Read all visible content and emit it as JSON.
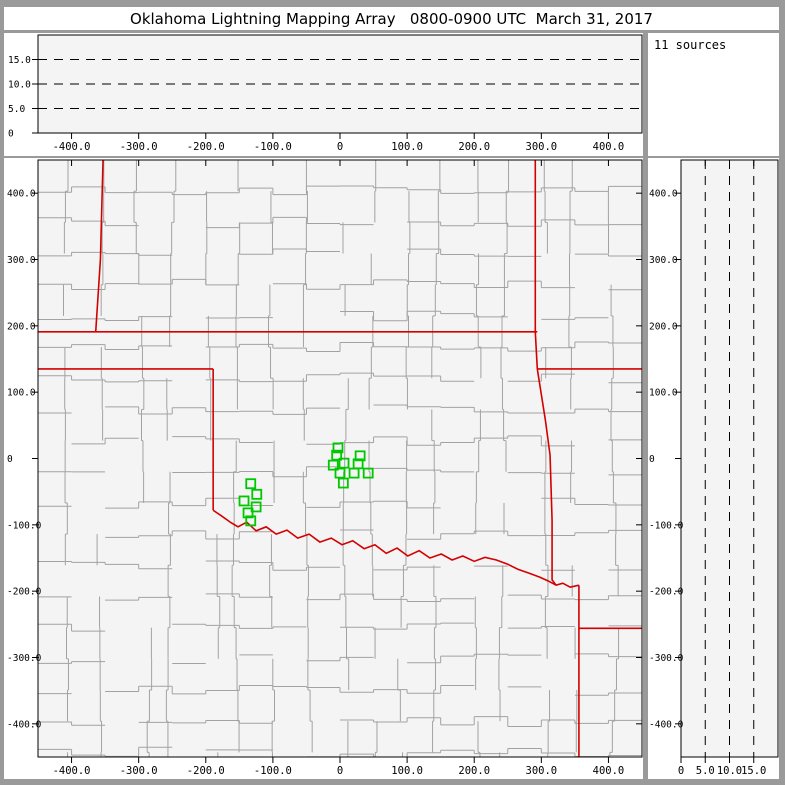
{
  "title": "Oklahoma Lightning Mapping Array   0800-0900 UTC  March 31, 2017",
  "sources_box": {
    "label": "11 sources"
  },
  "colors": {
    "window_chrome": "#9a9a9a",
    "panel_bg": "#ffffff",
    "plot_bg": "#f4f4f4",
    "axis": "#000000",
    "county_line": "#a2a2a2",
    "state_border": "#d40000",
    "station_marker": "#00c800",
    "text": "#000000"
  },
  "chart_data": [
    {
      "id": "ew-altitude-panel",
      "type": "scatter",
      "description": "Altitude (km) vs east-west distance (km); no lightning sources visible",
      "xlim": [
        -450,
        450
      ],
      "ylim": [
        0,
        20
      ],
      "xticks": [
        -400,
        -300,
        -200,
        -100,
        0,
        100,
        200,
        300,
        400
      ],
      "xtick_labels": [
        "-400.0",
        "-300.0",
        "-200.0",
        "-100.0",
        "0",
        "100.0",
        "200.0",
        "300.0",
        "400.0"
      ],
      "yticks": [
        0,
        5,
        10,
        15
      ],
      "ytick_labels": [
        "0",
        "5.0",
        "10.0",
        "15.0"
      ],
      "dashed_y_gridlines": [
        5,
        10,
        15
      ],
      "points": []
    },
    {
      "id": "plan-view-map",
      "type": "scatter",
      "description": "Plan view map (km east-west vs km north-south) with LMA station markers, red state borders, gray county lines",
      "xlim": [
        -450,
        450
      ],
      "ylim": [
        -450,
        450
      ],
      "xticks": [
        -400,
        -300,
        -200,
        -100,
        0,
        100,
        200,
        300,
        400
      ],
      "xtick_labels": [
        "-400.0",
        "-300.0",
        "-200.0",
        "-100.0",
        "0",
        "100.0",
        "200.0",
        "300.0",
        "400.0"
      ],
      "yticks": [
        400,
        300,
        200,
        100,
        0,
        -100,
        -200,
        -300,
        -400
      ],
      "ytick_labels": [
        "400.0",
        "300.0",
        "200.0",
        "100.0",
        "0",
        "-100.0",
        "-200.0",
        "-300.0",
        "-400.0"
      ],
      "marker": "open-square",
      "stations": [
        [
          -3,
          16
        ],
        [
          -5,
          5
        ],
        [
          30,
          4
        ],
        [
          -10,
          -10
        ],
        [
          6,
          -7
        ],
        [
          27,
          -8
        ],
        [
          0,
          -22
        ],
        [
          21,
          -22
        ],
        [
          42,
          -22
        ],
        [
          5,
          -37
        ],
        [
          -133,
          -38
        ],
        [
          -124,
          -54
        ],
        [
          -143,
          -64
        ],
        [
          -125,
          -73
        ],
        [
          -137,
          -82
        ],
        [
          -133,
          -94
        ]
      ],
      "state_borders": [
        {
          "name": "colorado-kansas",
          "points": [
            [
              -353,
              453
            ],
            [
              -357,
              300
            ],
            [
              -364,
              191
            ]
          ]
        },
        {
          "name": "kansas-oklahoma",
          "points": [
            [
              -450,
              191
            ],
            [
              294,
              191
            ]
          ]
        },
        {
          "name": "kansas-missouri",
          "points": [
            [
              291,
              453
            ],
            [
              291,
              191
            ]
          ]
        },
        {
          "name": "oklahoma-missouri",
          "points": [
            [
              291,
              191
            ],
            [
              294,
              135
            ]
          ]
        },
        {
          "name": "missouri-arkansas",
          "points": [
            [
              294,
              135
            ],
            [
              450,
              135
            ]
          ]
        },
        {
          "name": "oklahoma-texas-panhandle",
          "points": [
            [
              -450,
              135
            ],
            [
              -189,
              135
            ]
          ]
        },
        {
          "name": "texas-oklahoma-100th-meridian",
          "points": [
            [
              -189,
              135
            ],
            [
              -189,
              -78
            ]
          ]
        },
        {
          "name": "red-river",
          "points": [
            [
              -189,
              -78
            ],
            [
              -176,
              -87
            ],
            [
              -162,
              -97
            ],
            [
              -152,
              -103
            ],
            [
              -139,
              -96
            ],
            [
              -125,
              -109
            ],
            [
              -110,
              -103
            ],
            [
              -95,
              -114
            ],
            [
              -79,
              -108
            ],
            [
              -63,
              -120
            ],
            [
              -46,
              -114
            ],
            [
              -30,
              -126
            ],
            [
              -13,
              -120
            ],
            [
              3,
              -130
            ],
            [
              19,
              -124
            ],
            [
              36,
              -136
            ],
            [
              52,
              -130
            ],
            [
              69,
              -143
            ],
            [
              85,
              -135
            ],
            [
              101,
              -147
            ],
            [
              118,
              -139
            ],
            [
              134,
              -150
            ],
            [
              151,
              -144
            ],
            [
              167,
              -153
            ],
            [
              183,
              -147
            ],
            [
              200,
              -155
            ],
            [
              216,
              -149
            ],
            [
              233,
              -153
            ],
            [
              249,
              -159
            ],
            [
              265,
              -167
            ],
            [
              282,
              -173
            ],
            [
              298,
              -179
            ],
            [
              311,
              -185
            ],
            [
              322,
              -191
            ],
            [
              332,
              -188
            ],
            [
              343,
              -194
            ],
            [
              356,
              -191
            ]
          ]
        },
        {
          "name": "oklahoma-arkansas",
          "points": [
            [
              294,
              135
            ],
            [
              306,
              58
            ],
            [
              313,
              5
            ],
            [
              316,
              -93
            ],
            [
              316,
              -183
            ],
            [
              322,
              -191
            ]
          ]
        },
        {
          "name": "arkansas-texas-louisiana",
          "points": [
            [
              356,
              -191
            ],
            [
              356,
              -450
            ]
          ]
        },
        {
          "name": "arkansas-louisiana",
          "points": [
            [
              356,
              -256
            ],
            [
              450,
              -256
            ]
          ]
        }
      ],
      "county_grid": {
        "seed": 20170331,
        "col_step_km": 50,
        "row_step_km": 47,
        "jog_km": 8,
        "skip_prob": 0.2
      }
    },
    {
      "id": "ns-altitude-panel",
      "type": "scatter",
      "description": "North-south distance (km) vs altitude (km); no lightning sources visible",
      "xlim": [
        0,
        20
      ],
      "ylim": [
        -450,
        450
      ],
      "xticks": [
        0,
        5,
        10,
        15
      ],
      "xtick_labels": [
        "0",
        "5.0",
        "10.0",
        "15.0"
      ],
      "yticks": [
        400,
        300,
        200,
        100,
        0,
        -100,
        -200,
        -300,
        -400
      ],
      "ytick_labels": [
        "400.0",
        "300.0",
        "200.0",
        "100.0",
        "0",
        "-100.0",
        "-200.0",
        "-300.0",
        "-400.0"
      ],
      "dashed_x_gridlines": [
        5,
        10,
        15
      ],
      "points": []
    }
  ]
}
